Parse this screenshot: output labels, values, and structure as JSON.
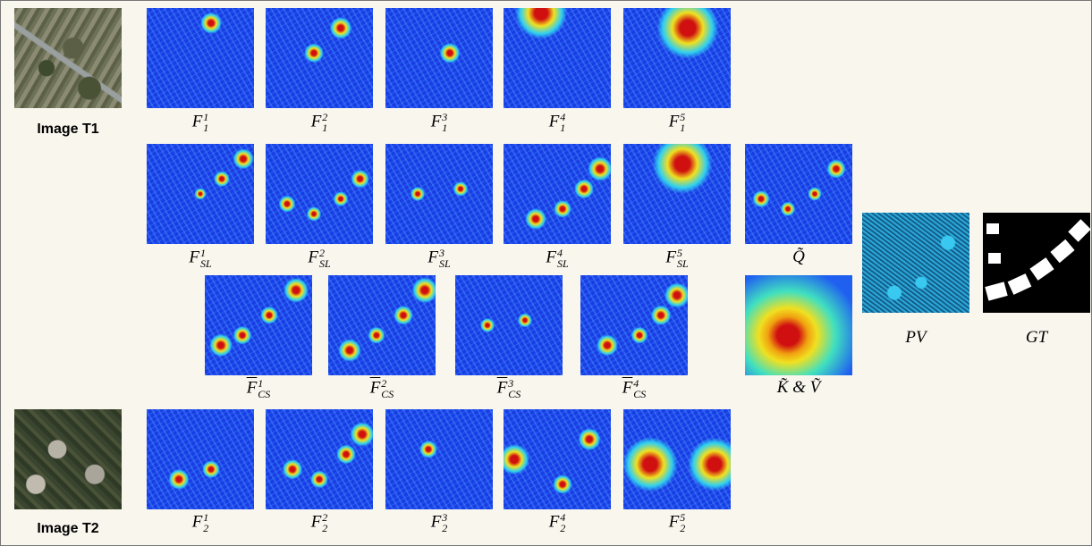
{
  "image_t1": "Image T1",
  "image_t2": "Image T2",
  "rows": [
    [
      {
        "base": "F",
        "sup": "1",
        "sub": "1"
      },
      {
        "base": "F",
        "sup": "2",
        "sub": "1"
      },
      {
        "base": "F",
        "sup": "3",
        "sub": "1"
      },
      {
        "base": "F",
        "sup": "4",
        "sub": "1"
      },
      {
        "base": "F",
        "sup": "5",
        "sub": "1"
      }
    ],
    [
      {
        "base": "F",
        "sup": "1",
        "sub": "SL"
      },
      {
        "base": "F",
        "sup": "2",
        "sub": "SL"
      },
      {
        "base": "F",
        "sup": "3",
        "sub": "SL"
      },
      {
        "base": "F",
        "sup": "4",
        "sub": "SL"
      },
      {
        "base": "F",
        "sup": "5",
        "sub": "SL"
      },
      {
        "base": "Q̃"
      }
    ],
    [
      {
        "base": "F",
        "sup": "1",
        "sub": "CS"
      },
      {
        "base": "F",
        "sup": "2",
        "sub": "CS"
      },
      {
        "base": "F",
        "sup": "3",
        "sub": "CS"
      },
      {
        "base": "F",
        "sup": "4",
        "sub": "CS"
      },
      {
        "base": "K̃ & Ṽ"
      }
    ],
    [
      {
        "base": "F",
        "sup": "1",
        "sub": "2"
      },
      {
        "base": "F",
        "sup": "2",
        "sub": "2"
      },
      {
        "base": "F",
        "sup": "3",
        "sub": "2"
      },
      {
        "base": "F",
        "sup": "4",
        "sub": "2"
      },
      {
        "base": "F",
        "sup": "5",
        "sub": "2"
      }
    ]
  ],
  "outputs": [
    {
      "base": "PV"
    },
    {
      "base": "GT"
    }
  ]
}
